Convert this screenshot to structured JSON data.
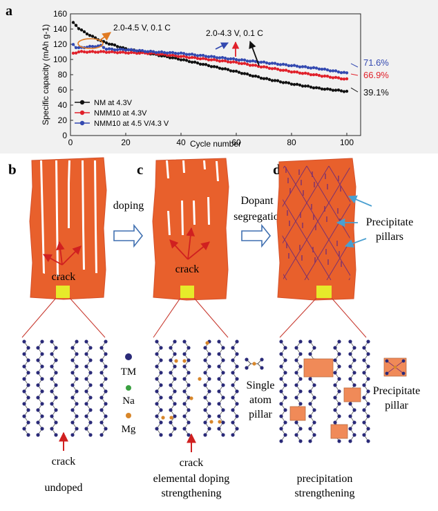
{
  "panel_labels": {
    "a": "a",
    "b": "b",
    "c": "c",
    "d": "d"
  },
  "colors": {
    "series_nm": "#111111",
    "series_nmm10_43": "#e0202a",
    "series_nmm10_45": "#3349b0",
    "grain": "#e8602c",
    "grain_edge": "#d4502a",
    "yellow_box": "#e6ea2a",
    "red_arrow": "#d02020",
    "blue_arrow": "#4a9fd0",
    "pillar_line": "#7a3070",
    "atom_tm": "#2a2a78",
    "atom_na": "#3aa040",
    "atom_mg": "#d8862a",
    "annotation_orange": "#e07a22"
  },
  "chart_data": {
    "type": "scatter",
    "title": "",
    "xlabel": "Cycle number",
    "ylabel": "Specific capacity (mAh g-1)",
    "xlim": [
      0,
      105
    ],
    "ylim": [
      0,
      160
    ],
    "xticks": [
      "0",
      "20",
      "40",
      "60",
      "80",
      "100"
    ],
    "yticks": [
      "0",
      "20",
      "40",
      "60",
      "80",
      "100",
      "120",
      "140",
      "160"
    ],
    "legend": {
      "placement": "bottom-left",
      "entries": [
        "NM at 4.3V",
        "NMM10 at 4.3V",
        "NMM10 at 4.5 V/4.3 V"
      ]
    },
    "series": [
      {
        "name": "NM at 4.3V",
        "color": "#111111",
        "x": [
          1,
          2,
          3,
          5,
          8,
          12,
          20,
          30,
          40,
          50,
          60,
          70,
          80,
          90,
          100
        ],
        "y": [
          148,
          145,
          141,
          136,
          130,
          123,
          114,
          107,
          100,
          92,
          84,
          75,
          68,
          62,
          58
        ]
      },
      {
        "name": "NMM10 at 4.3V",
        "color": "#e0202a",
        "x": [
          1,
          2,
          3,
          5,
          8,
          12,
          20,
          30,
          40,
          50,
          60,
          70,
          80,
          90,
          100
        ],
        "y": [
          108,
          109,
          110,
          110,
          110,
          110,
          109,
          108,
          104,
          100,
          96,
          90,
          84,
          79,
          74
        ]
      },
      {
        "name": "NMM10 at 4.5 V/4.3 V",
        "color": "#3349b0",
        "x": [
          1,
          2,
          3,
          5,
          8,
          11,
          13,
          16,
          20,
          30,
          40,
          50,
          60,
          70,
          80,
          90,
          100
        ],
        "y": [
          120,
          116,
          115,
          116,
          117,
          118,
          114,
          113,
          113,
          110,
          108,
          104,
          100,
          96,
          92,
          88,
          82
        ]
      }
    ],
    "annotations": {
      "voltage_45": "2.0-4.5 V, 0.1 C",
      "voltage_43": "2.0-4.3 V, 0.1 C",
      "retention_blue": "71.6%",
      "retention_red": "66.9%",
      "retention_black": "39.1%"
    }
  },
  "labels": {
    "doping": "doping",
    "dopant_line1": "Dopant",
    "dopant_line2": "segregation",
    "crack": "crack",
    "precipitate_line1": "Precipitate",
    "precipitate_line2": "pillars",
    "legend_tm": "TM",
    "legend_na": "Na",
    "legend_mg": "Mg",
    "single_line1": "Single",
    "single_line2": "atom",
    "single_line3": "pillar",
    "precip_pillar_line1": "Precipitate",
    "precip_pillar_line2": "pillar",
    "caption_undoped": "undoped",
    "caption_elemental_1": "elemental doping",
    "caption_elemental_2": "strengthening",
    "caption_precip_1": "precipitation",
    "caption_precip_2": "strengthening"
  }
}
